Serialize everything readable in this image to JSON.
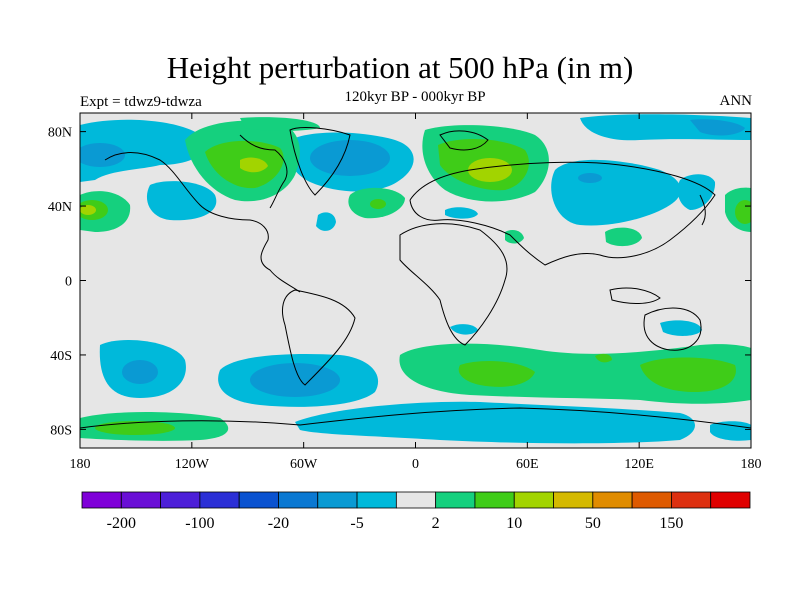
{
  "plot": {
    "title": "Height perturbation at 500 hPa (in m)",
    "subtitle": "120kyr BP - 000kyr BP",
    "left_label": "Expt = tdwz9-tdwza",
    "right_label": "ANN"
  },
  "axes": {
    "lon_ticks": [
      "180",
      "120W",
      "60W",
      "0",
      "60E",
      "120E",
      "180"
    ],
    "lat_ticks": [
      "80N",
      "40N",
      "0",
      "40S",
      "80S"
    ]
  },
  "colorbar": {
    "colors": [
      "#7f00d8",
      "#6a0fd6",
      "#4d1fd8",
      "#2b2fd6",
      "#0a52d0",
      "#0a78d2",
      "#0a9ad3",
      "#00b9da",
      "#e6e6e6",
      "#15d07e",
      "#3fcc18",
      "#a2d400",
      "#d4b900",
      "#e08c00",
      "#de5a00",
      "#dd3010",
      "#e00000"
    ],
    "labels": [
      "-200",
      "-100",
      "-20",
      "-5",
      "2",
      "10",
      "50",
      "150"
    ]
  },
  "palette": {
    "background": "#e6e6e6",
    "neg1": "#00b9da",
    "neg2": "#0a9ad3",
    "pos1": "#15d07e",
    "pos2": "#3fcc18",
    "pos3": "#a2d400"
  }
}
